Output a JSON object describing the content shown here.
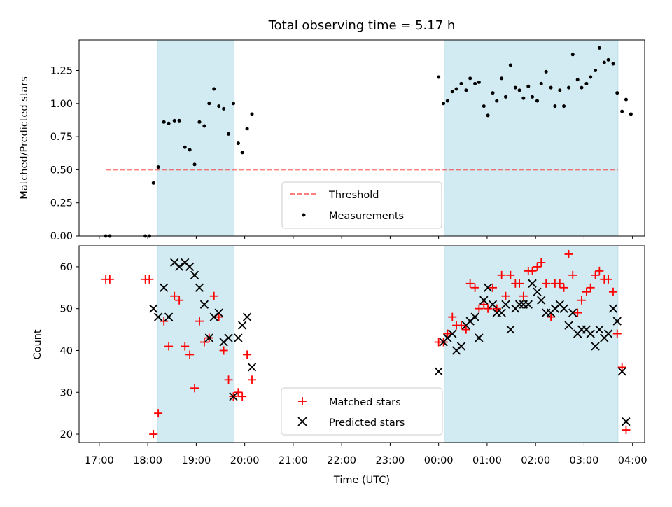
{
  "chart_data": {
    "type": "scatter",
    "title": "Total observing time = 5.17 h",
    "x_unit": "Time (UTC)",
    "xlabel": "Time (UTC)",
    "xlim": [
      "16:35",
      "04:15"
    ],
    "xticks": [
      "17:00",
      "18:00",
      "19:00",
      "20:00",
      "21:00",
      "22:00",
      "23:00",
      "00:00",
      "01:00",
      "02:00",
      "03:00",
      "04:00"
    ],
    "shaded_intervals": [
      [
        "18:12",
        "19:47"
      ],
      [
        "00:07",
        "03:42"
      ]
    ],
    "shade_color": "#add8e6",
    "panels": [
      {
        "ylabel": "Matched/Predicted stars",
        "ylim": [
          0,
          1.48
        ],
        "yticks": [
          "0.00",
          "0.25",
          "0.50",
          "0.75",
          "1.00",
          "1.25"
        ],
        "legend_position": "lower center",
        "threshold": {
          "name": "Threshold",
          "value": 0.5,
          "x_range": [
            "17:08",
            "03:42"
          ],
          "color": "#ff0000"
        },
        "series": [
          {
            "name": "Measurements",
            "marker": "dot",
            "color": "#000000",
            "points": [
              [
                "17:08",
                0.0
              ],
              [
                "17:13",
                0.0
              ],
              [
                "17:57",
                0.0
              ],
              [
                "18:02",
                0.0
              ],
              [
                "18:07",
                0.4
              ],
              [
                "18:13",
                0.52
              ],
              [
                "18:20",
                0.86
              ],
              [
                "18:26",
                0.85
              ],
              [
                "18:33",
                0.87
              ],
              [
                "18:39",
                0.87
              ],
              [
                "18:46",
                0.67
              ],
              [
                "18:52",
                0.65
              ],
              [
                "18:58",
                0.54
              ],
              [
                "19:04",
                0.86
              ],
              [
                "19:10",
                0.83
              ],
              [
                "19:16",
                1.0
              ],
              [
                "19:22",
                1.11
              ],
              [
                "19:28",
                0.98
              ],
              [
                "19:34",
                0.96
              ],
              [
                "19:40",
                0.77
              ],
              [
                "19:46",
                1.0
              ],
              [
                "19:52",
                0.7
              ],
              [
                "19:57",
                0.63
              ],
              [
                "20:03",
                0.81
              ],
              [
                "20:09",
                0.92
              ],
              [
                "00:00",
                1.2
              ],
              [
                "00:06",
                1.0
              ],
              [
                "00:11",
                1.02
              ],
              [
                "00:17",
                1.09
              ],
              [
                "00:22",
                1.11
              ],
              [
                "00:28",
                1.15
              ],
              [
                "00:34",
                1.1
              ],
              [
                "00:39",
                1.19
              ],
              [
                "00:45",
                1.15
              ],
              [
                "00:50",
                1.16
              ],
              [
                "00:56",
                0.98
              ],
              [
                "01:01",
                0.91
              ],
              [
                "01:07",
                1.08
              ],
              [
                "01:12",
                1.02
              ],
              [
                "01:18",
                1.19
              ],
              [
                "01:23",
                1.05
              ],
              [
                "01:29",
                1.29
              ],
              [
                "01:35",
                1.12
              ],
              [
                "01:40",
                1.1
              ],
              [
                "01:45",
                1.04
              ],
              [
                "01:51",
                1.13
              ],
              [
                "01:56",
                1.05
              ],
              [
                "02:02",
                1.02
              ],
              [
                "02:07",
                1.15
              ],
              [
                "02:13",
                1.24
              ],
              [
                "02:19",
                1.12
              ],
              [
                "02:24",
                0.98
              ],
              [
                "02:30",
                1.1
              ],
              [
                "02:35",
                0.98
              ],
              [
                "02:41",
                1.12
              ],
              [
                "02:46",
                1.37
              ],
              [
                "02:52",
                1.18
              ],
              [
                "02:57",
                1.12
              ],
              [
                "03:03",
                1.15
              ],
              [
                "03:08",
                1.2
              ],
              [
                "03:14",
                1.25
              ],
              [
                "03:19",
                1.42
              ],
              [
                "03:25",
                1.31
              ],
              [
                "03:30",
                1.33
              ],
              [
                "03:36",
                1.3
              ],
              [
                "03:41",
                1.08
              ],
              [
                "03:47",
                0.94
              ],
              [
                "03:52",
                1.03
              ],
              [
                "03:58",
                0.92
              ]
            ]
          }
        ]
      },
      {
        "ylabel": "Count",
        "ylim": [
          18,
          65
        ],
        "yticks": [
          "20",
          "30",
          "40",
          "50",
          "60"
        ],
        "legend_position": "lower center",
        "series": [
          {
            "name": "Matched stars",
            "marker": "plus",
            "color": "#ff0000",
            "points": [
              [
                "17:08",
                57
              ],
              [
                "17:13",
                57
              ],
              [
                "17:57",
                57
              ],
              [
                "18:02",
                57
              ],
              [
                "18:07",
                20
              ],
              [
                "18:13",
                25
              ],
              [
                "18:20",
                47
              ],
              [
                "18:26",
                41
              ],
              [
                "18:33",
                53
              ],
              [
                "18:39",
                52
              ],
              [
                "18:46",
                41
              ],
              [
                "18:52",
                39
              ],
              [
                "18:58",
                31
              ],
              [
                "19:04",
                47
              ],
              [
                "19:10",
                42
              ],
              [
                "19:16",
                43
              ],
              [
                "19:22",
                53
              ],
              [
                "19:28",
                48
              ],
              [
                "19:34",
                40
              ],
              [
                "19:40",
                33
              ],
              [
                "19:46",
                29
              ],
              [
                "19:52",
                30
              ],
              [
                "19:57",
                29
              ],
              [
                "20:03",
                39
              ],
              [
                "20:09",
                33
              ],
              [
                "00:00",
                42
              ],
              [
                "00:06",
                42
              ],
              [
                "00:11",
                44
              ],
              [
                "00:17",
                48
              ],
              [
                "00:22",
                46
              ],
              [
                "00:28",
                46
              ],
              [
                "00:34",
                45
              ],
              [
                "00:39",
                56
              ],
              [
                "00:45",
                55
              ],
              [
                "00:50",
                50
              ],
              [
                "00:56",
                51
              ],
              [
                "01:01",
                50
              ],
              [
                "01:07",
                55
              ],
              [
                "01:12",
                50
              ],
              [
                "01:18",
                58
              ],
              [
                "01:23",
                53
              ],
              [
                "01:29",
                58
              ],
              [
                "01:35",
                56
              ],
              [
                "01:40",
                56
              ],
              [
                "01:45",
                53
              ],
              [
                "01:51",
                59
              ],
              [
                "01:56",
                59
              ],
              [
                "02:02",
                60
              ],
              [
                "02:07",
                61
              ],
              [
                "02:13",
                56
              ],
              [
                "02:19",
                48
              ],
              [
                "02:24",
                56
              ],
              [
                "02:30",
                56
              ],
              [
                "02:35",
                55
              ],
              [
                "02:41",
                63
              ],
              [
                "02:46",
                58
              ],
              [
                "02:52",
                49
              ],
              [
                "02:57",
                52
              ],
              [
                "03:03",
                54
              ],
              [
                "03:08",
                55
              ],
              [
                "03:14",
                58
              ],
              [
                "03:19",
                59
              ],
              [
                "03:25",
                57
              ],
              [
                "03:30",
                57
              ],
              [
                "03:36",
                54
              ],
              [
                "03:41",
                44
              ],
              [
                "03:47",
                36
              ],
              [
                "03:52",
                21
              ]
            ]
          },
          {
            "name": "Predicted stars",
            "marker": "x",
            "color": "#000000",
            "points": [
              [
                "18:07",
                50
              ],
              [
                "18:13",
                48
              ],
              [
                "18:20",
                55
              ],
              [
                "18:26",
                48
              ],
              [
                "18:33",
                61
              ],
              [
                "18:39",
                60
              ],
              [
                "18:46",
                61
              ],
              [
                "18:52",
                60
              ],
              [
                "18:58",
                58
              ],
              [
                "19:04",
                55
              ],
              [
                "19:10",
                51
              ],
              [
                "19:16",
                43
              ],
              [
                "19:22",
                48
              ],
              [
                "19:28",
                49
              ],
              [
                "19:34",
                42
              ],
              [
                "19:40",
                43
              ],
              [
                "19:46",
                29
              ],
              [
                "19:52",
                43
              ],
              [
                "19:57",
                46
              ],
              [
                "20:03",
                48
              ],
              [
                "20:09",
                36
              ],
              [
                "00:00",
                35
              ],
              [
                "00:06",
                42
              ],
              [
                "00:11",
                43
              ],
              [
                "00:17",
                44
              ],
              [
                "00:22",
                40
              ],
              [
                "00:28",
                41
              ],
              [
                "00:34",
                46
              ],
              [
                "00:39",
                47
              ],
              [
                "00:45",
                48
              ],
              [
                "00:50",
                43
              ],
              [
                "00:56",
                52
              ],
              [
                "01:01",
                55
              ],
              [
                "01:07",
                51
              ],
              [
                "01:12",
                49
              ],
              [
                "01:18",
                49
              ],
              [
                "01:23",
                51
              ],
              [
                "01:29",
                45
              ],
              [
                "01:35",
                50
              ],
              [
                "01:40",
                51
              ],
              [
                "01:45",
                51
              ],
              [
                "01:51",
                51
              ],
              [
                "01:56",
                56
              ],
              [
                "02:02",
                54
              ],
              [
                "02:07",
                52
              ],
              [
                "02:13",
                49
              ],
              [
                "02:19",
                49
              ],
              [
                "02:24",
                50
              ],
              [
                "02:30",
                51
              ],
              [
                "02:35",
                50
              ],
              [
                "02:41",
                46
              ],
              [
                "02:46",
                49
              ],
              [
                "02:52",
                44
              ],
              [
                "02:57",
                45
              ],
              [
                "03:03",
                45
              ],
              [
                "03:08",
                44
              ],
              [
                "03:14",
                41
              ],
              [
                "03:19",
                45
              ],
              [
                "03:25",
                43
              ],
              [
                "03:30",
                44
              ],
              [
                "03:36",
                50
              ],
              [
                "03:41",
                47
              ],
              [
                "03:47",
                35
              ],
              [
                "03:52",
                23
              ]
            ]
          }
        ]
      }
    ]
  }
}
